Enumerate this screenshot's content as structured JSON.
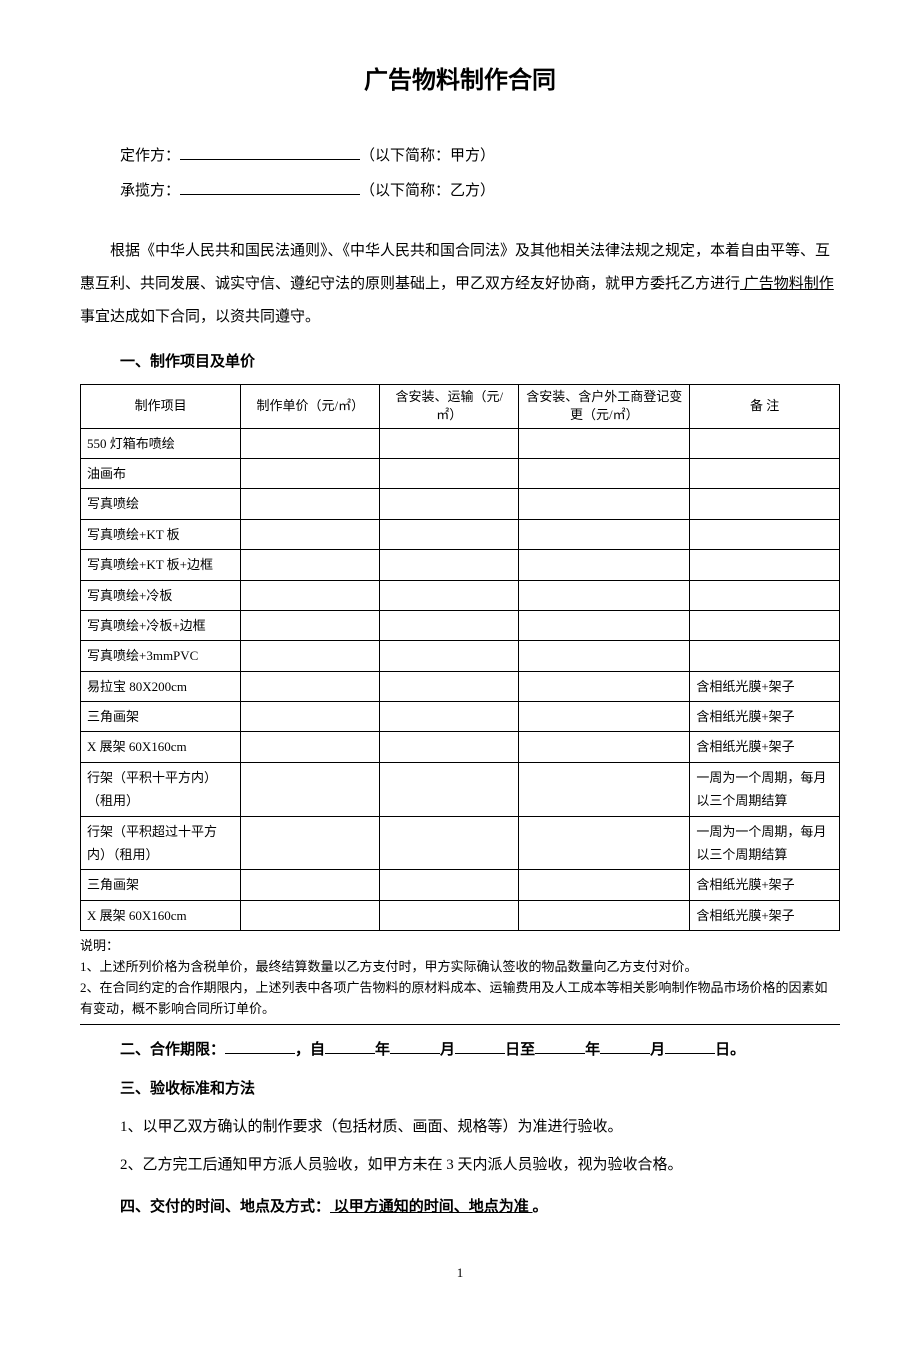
{
  "title": "广告物料制作合同",
  "parties": {
    "a_label": "定作方：",
    "a_suffix": "（以下简称：甲方）",
    "b_label": "承揽方：",
    "b_suffix": "（以下简称：乙方）"
  },
  "intro": {
    "text1": "根据《中华人民共和国民法通则》、《中华人民共和国合同法》及其他相关法律法规之规定，本着自由平等、互惠互利、共同发展、诚实守信、遵纪守法的原则基础上，甲乙双方经友好协商，就甲方委托乙方进行",
    "underline": " 广告物料制作 ",
    "text2": "事宜达成如下合同，以资共同遵守。"
  },
  "section1": {
    "heading": "一、制作项目及单价",
    "headers": {
      "item": "制作项目",
      "price": "制作单价（元/㎡）",
      "install": "含安装、运输（元/㎡）",
      "outdoor": "含安装、含户外工商登记变更（元/㎡）",
      "note": "备 注"
    },
    "rows": [
      {
        "item": "550 灯箱布喷绘",
        "note": ""
      },
      {
        "item": "油画布",
        "note": ""
      },
      {
        "item": "写真喷绘",
        "note": ""
      },
      {
        "item": "写真喷绘+KT 板",
        "note": ""
      },
      {
        "item": "写真喷绘+KT 板+边框",
        "note": ""
      },
      {
        "item": "写真喷绘+冷板",
        "note": ""
      },
      {
        "item": "写真喷绘+冷板+边框",
        "note": ""
      },
      {
        "item": "写真喷绘+3mmPVC",
        "note": ""
      },
      {
        "item": "易拉宝 80X200cm",
        "note": "含相纸光膜+架子"
      },
      {
        "item": "三角画架",
        "note": "含相纸光膜+架子"
      },
      {
        "item": "X 展架 60X160cm",
        "note": "含相纸光膜+架子"
      },
      {
        "item": "行架（平积十平方内）（租用）",
        "note": "一周为一个周期，每月以三个周期结算"
      },
      {
        "item": "行架（平积超过十平方内）（租用）",
        "note": "一周为一个周期，每月以三个周期结算"
      },
      {
        "item": "三角画架",
        "note": "含相纸光膜+架子"
      },
      {
        "item": "X 展架 60X160cm",
        "note": "含相纸光膜+架子"
      }
    ],
    "notes": {
      "label": "说明：",
      "n1": "1、上述所列价格为含税单价，最终结算数量以乙方支付时，甲方实际确认签收的物品数量向乙方支付对价。",
      "n2": "2、在合同约定的合作期限内，上述列表中各项广告物料的原材料成本、运输费用及人工成本等相关影响制作物品市场价格的因素如有变动，概不影响合同所订单价。"
    }
  },
  "section2": {
    "prefix": "二、合作期限：",
    "mid1": "，自",
    "y": "年",
    "m": "月",
    "d1": "日至",
    "d2": "日。"
  },
  "section3": {
    "heading": "三、验收标准和方法",
    "p1": "1、以甲乙双方确认的制作要求（包括材质、画面、规格等）为准进行验收。",
    "p2": "2、乙方完工后通知甲方派人员验收，如甲方未在 3 天内派人员验收，视为验收合格。"
  },
  "section4": {
    "prefix": "四、交付的时间、地点及方式：",
    "underline": " 以甲方通知的时间、地点为准 ",
    "suffix": "。"
  },
  "page_number": "1"
}
